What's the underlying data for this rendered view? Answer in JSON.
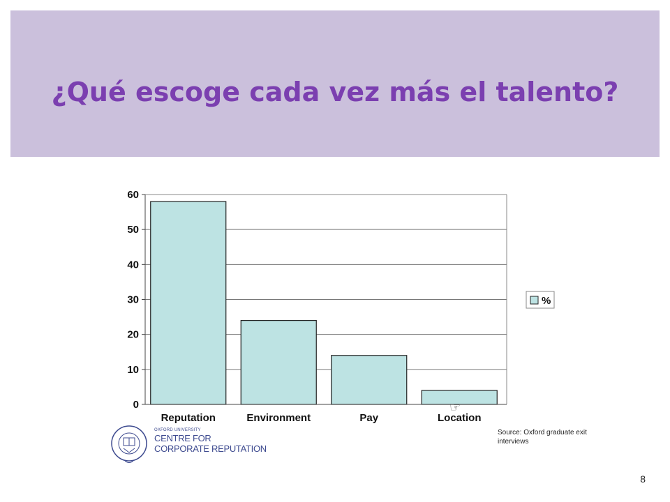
{
  "slide": {
    "title": "¿Qué escoge cada vez más el talento?",
    "page_number": "8"
  },
  "chart_data": {
    "type": "bar",
    "categories": [
      "Reputation",
      "Environment",
      "Pay",
      "Location"
    ],
    "values": [
      58,
      24,
      14,
      4
    ],
    "series": [
      {
        "name": "%",
        "values": [
          58,
          24,
          14,
          4
        ]
      }
    ],
    "yticks": [
      "0",
      "10",
      "20",
      "30",
      "40",
      "50",
      "60"
    ],
    "ylim": [
      0,
      60
    ],
    "grid": true,
    "legend": "right",
    "bar_color": "#bde3e3",
    "source": "Source: Oxford graduate exit interviews"
  },
  "logo": {
    "line1": "OXFORD UNIVERSITY",
    "line2": "CENTRE FOR",
    "line3": "CORPORATE REPUTATION",
    "seal_text": "UNIVERSITY OF OXFORD"
  },
  "icons": {
    "pointer": "hand-pointer-icon"
  }
}
